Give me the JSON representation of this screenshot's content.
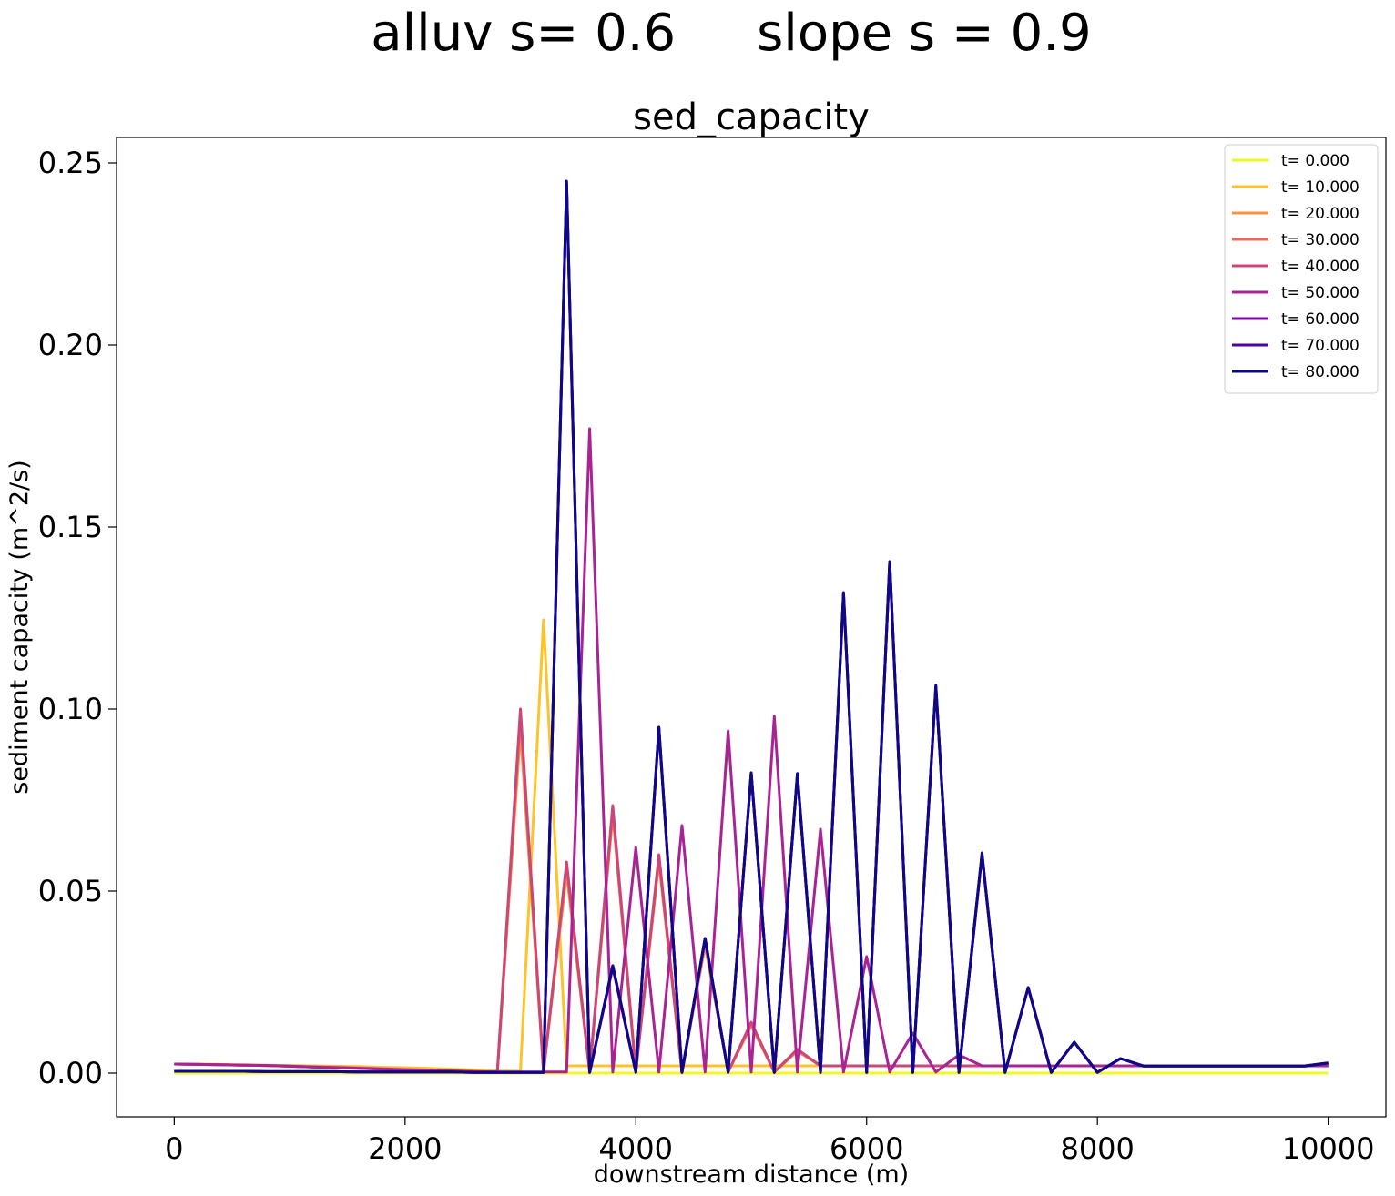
{
  "suptitle": "alluv s= 0.6     slope s = 0.9",
  "chart_data": {
    "type": "line",
    "title": "sed_capacity",
    "xlabel": "downstream distance (m)",
    "ylabel": "sediment capacity (m^2/s)",
    "xlim": [
      -500,
      10500
    ],
    "ylim": [
      -0.012,
      0.257
    ],
    "xticks": [
      0,
      2000,
      4000,
      6000,
      8000,
      10000
    ],
    "xtick_labels": [
      "0",
      "2000",
      "4000",
      "6000",
      "8000",
      "10000"
    ],
    "yticks": [
      0,
      0.05,
      0.1,
      0.15,
      0.2,
      0.25
    ],
    "ytick_labels": [
      "0.00",
      "0.05",
      "0.10",
      "0.15",
      "0.20",
      "0.25"
    ],
    "grid": false,
    "legend_position": "top-right",
    "x": [
      0,
      200,
      400,
      600,
      800,
      1000,
      1200,
      1400,
      1600,
      1800,
      2000,
      2200,
      2400,
      2600,
      2800,
      3000,
      3200,
      3400,
      3600,
      3800,
      4000,
      4200,
      4400,
      4600,
      4800,
      5000,
      5200,
      5400,
      5600,
      5800,
      6000,
      6200,
      6400,
      6600,
      6800,
      7000,
      7200,
      7400,
      7600,
      7800,
      8000,
      8200,
      8400,
      8600,
      8800,
      9000,
      9200,
      9400,
      9600,
      9800,
      10000
    ],
    "series": [
      {
        "name": "t= 0.000",
        "color": "#f0f921",
        "values": [
          0,
          0,
          0,
          0,
          0,
          0,
          0,
          0,
          0,
          0,
          0,
          0,
          0,
          0,
          0,
          0,
          0,
          0,
          0,
          0,
          0,
          0,
          0,
          0,
          0,
          0,
          0,
          0,
          0,
          0,
          0,
          0,
          0,
          0,
          0,
          0,
          0,
          0,
          0,
          0,
          0,
          0,
          0,
          0,
          0,
          0,
          0,
          0,
          0,
          0,
          0
        ]
      },
      {
        "name": "t= 10.000",
        "color": "#fdc328",
        "values": [
          0.0025,
          0.0025,
          0.0024,
          0.0023,
          0.0022,
          0.0021,
          0.002,
          0.0019,
          0.0018,
          0.0016,
          0.0015,
          0.0013,
          0.0011,
          0.0009,
          0.0006,
          0.0005,
          0.1245,
          0.002,
          0.002,
          0.002,
          0.002,
          0.002,
          0.002,
          0.002,
          0.002,
          0.002,
          0.002,
          0.002,
          0.002,
          0.002,
          0.002,
          0.002,
          0.002,
          0.002,
          0.002,
          0.002,
          0.002,
          0.002,
          0.002,
          0.002,
          0.002,
          0.002,
          0.002,
          0.002,
          0.002,
          0.002,
          0.002,
          0.002,
          0.002,
          0.002,
          0.002
        ]
      },
      {
        "name": "t= 20.000",
        "color": "#f89441",
        "values": [
          0.0025,
          0.0024,
          0.0023,
          0.0022,
          0.0021,
          0.002,
          0.0018,
          0.0017,
          0.0015,
          0.0013,
          0.0011,
          0.0009,
          0.0007,
          0.0005,
          0.0003,
          0.094,
          0.0003,
          0.055,
          0.0003,
          0.071,
          0.0003,
          0.058,
          0.0003,
          0.035,
          0.0003,
          0.013,
          0.0003,
          0.006,
          0.002,
          0.002,
          0.002,
          0.002,
          0.002,
          0.002,
          0.002,
          0.002,
          0.002,
          0.002,
          0.002,
          0.002,
          0.002,
          0.002,
          0.002,
          0.002,
          0.002,
          0.002,
          0.002,
          0.002,
          0.002,
          0.002,
          0.002
        ]
      },
      {
        "name": "t= 30.000",
        "color": "#e56b5d",
        "values": [
          0.0025,
          0.0024,
          0.0023,
          0.0022,
          0.0021,
          0.0019,
          0.0017,
          0.0016,
          0.0014,
          0.0012,
          0.001,
          0.0008,
          0.0006,
          0.0004,
          0.0003,
          0.098,
          0.0003,
          0.057,
          0.0003,
          0.072,
          0.0003,
          0.059,
          0.0003,
          0.036,
          0.0003,
          0.0135,
          0.0003,
          0.0065,
          0.002,
          0.002,
          0.002,
          0.002,
          0.002,
          0.002,
          0.002,
          0.002,
          0.002,
          0.002,
          0.002,
          0.002,
          0.002,
          0.002,
          0.002,
          0.002,
          0.002,
          0.002,
          0.002,
          0.002,
          0.002,
          0.002,
          0.002
        ]
      },
      {
        "name": "t= 40.000",
        "color": "#cb4778",
        "values": [
          0.0025,
          0.0024,
          0.0023,
          0.0022,
          0.0021,
          0.0019,
          0.0017,
          0.0015,
          0.0013,
          0.0011,
          0.0009,
          0.0008,
          0.0006,
          0.0004,
          0.0003,
          0.1,
          0.0003,
          0.058,
          0.0003,
          0.0735,
          0.0003,
          0.06,
          0.0003,
          0.037,
          0.0003,
          0.014,
          0.0003,
          0.0065,
          0.002,
          0.002,
          0.002,
          0.002,
          0.002,
          0.002,
          0.002,
          0.002,
          0.002,
          0.002,
          0.002,
          0.002,
          0.002,
          0.002,
          0.002,
          0.002,
          0.002,
          0.002,
          0.002,
          0.002,
          0.002,
          0.002,
          0.002
        ]
      },
      {
        "name": "t= 50.000",
        "color": "#a92395",
        "values": [
          0.0025,
          0.0024,
          0.0023,
          0.0022,
          0.0021,
          0.0019,
          0.0017,
          0.0015,
          0.0013,
          0.0011,
          0.0009,
          0.0007,
          0.0006,
          0.0004,
          0.0003,
          0.0003,
          0.0003,
          0.0003,
          0.177,
          0.0003,
          0.062,
          0.0003,
          0.068,
          0.0003,
          0.094,
          0.0003,
          0.098,
          0.0003,
          0.067,
          0.0003,
          0.032,
          0.0003,
          0.011,
          0.0003,
          0.005,
          0.002,
          0.002,
          0.002,
          0.002,
          0.002,
          0.002,
          0.002,
          0.002,
          0.002,
          0.002,
          0.002,
          0.002,
          0.002,
          0.002,
          0.002,
          0.002
        ]
      },
      {
        "name": "t= 60.000",
        "color": "#7e03a8",
        "values": [
          0.0005,
          0.0005,
          0.0005,
          0.0005,
          0.0004,
          0.0004,
          0.0004,
          0.0004,
          0.0003,
          0.0003,
          0.0003,
          0.0003,
          0.0003,
          0.0002,
          0.0002,
          0.0002,
          0.0002,
          0.244,
          0.0002,
          0.029,
          0.0002,
          0.0945,
          0.0002,
          0.037,
          0.0002,
          0.0825,
          0.0002,
          0.082,
          0.0002,
          0.1315,
          0.0002,
          0.1405,
          0.0002,
          0.106,
          0.0002,
          0.06,
          0.0002,
          0.0235,
          0.0002,
          0.0085,
          0.0002,
          0.004,
          0.002,
          0.002,
          0.002,
          0.002,
          0.002,
          0.002,
          0.002,
          0.002,
          0.0028
        ]
      },
      {
        "name": "t= 70.000",
        "color": "#4c02a1",
        "values": [
          0.0005,
          0.0005,
          0.0005,
          0.0005,
          0.0004,
          0.0004,
          0.0004,
          0.0004,
          0.0003,
          0.0003,
          0.0003,
          0.0003,
          0.0003,
          0.0002,
          0.0002,
          0.0002,
          0.0002,
          0.2445,
          0.0002,
          0.0295,
          0.0002,
          0.095,
          0.0002,
          0.037,
          0.0002,
          0.0825,
          0.0002,
          0.0822,
          0.0002,
          0.1318,
          0.0002,
          0.1405,
          0.0002,
          0.1062,
          0.0002,
          0.0602,
          0.0002,
          0.0235,
          0.0002,
          0.0085,
          0.0002,
          0.004,
          0.002,
          0.002,
          0.002,
          0.002,
          0.002,
          0.002,
          0.002,
          0.002,
          0.0028
        ]
      },
      {
        "name": "t= 80.000",
        "color": "#0d0887",
        "values": [
          0.0005,
          0.0005,
          0.0005,
          0.0005,
          0.0004,
          0.0004,
          0.0004,
          0.0004,
          0.0003,
          0.0003,
          0.0003,
          0.0003,
          0.0003,
          0.0002,
          0.0002,
          0.0002,
          0.0002,
          0.245,
          0.0002,
          0.0295,
          0.0002,
          0.095,
          0.0002,
          0.037,
          0.0002,
          0.0825,
          0.0002,
          0.0823,
          0.0002,
          0.132,
          0.0002,
          0.1405,
          0.0002,
          0.1065,
          0.0002,
          0.0605,
          0.0002,
          0.0235,
          0.0002,
          0.0085,
          0.0002,
          0.004,
          0.0019,
          0.0019,
          0.0019,
          0.0019,
          0.0019,
          0.0019,
          0.0019,
          0.0019,
          0.0028
        ]
      }
    ]
  }
}
